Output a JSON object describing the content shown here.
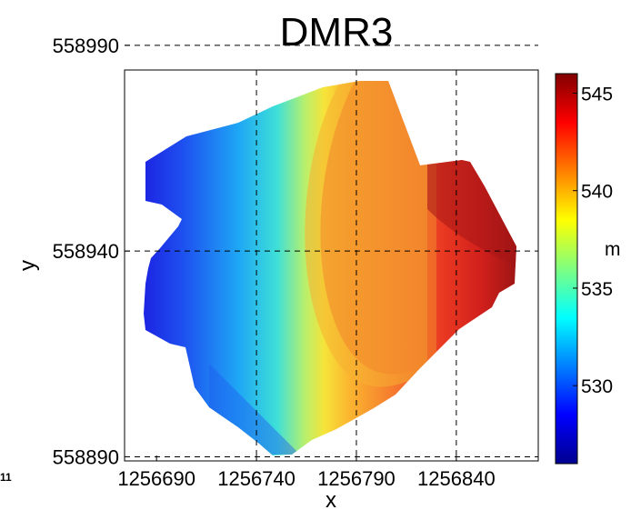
{
  "chart_data": {
    "type": "heatmap",
    "title": "DMR3",
    "xlabel": "x",
    "ylabel": "y",
    "xlim": [
      1256674,
      1256881
    ],
    "ylim": [
      558839,
      558934
    ],
    "xticks": [
      "1256690",
      "1256740",
      "1256790",
      "1256840"
    ],
    "yticks": [
      "558990",
      "558940",
      "558890"
    ],
    "clipped_tick_label": "11",
    "grid": "on",
    "colorbar": {
      "label": "m",
      "range": [
        526,
        546
      ],
      "ticks": [
        "545",
        "540",
        "535",
        "530"
      ],
      "colormap": "jet"
    },
    "z_values": {
      "min": 526,
      "max": 546,
      "trend": "elevation increases from west (about 527 m) to east (about 545 m)"
    }
  }
}
